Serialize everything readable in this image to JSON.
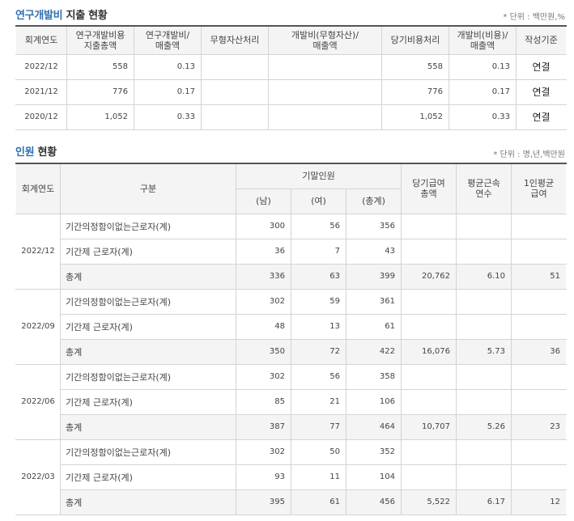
{
  "rd": {
    "title_prefix": "연구개발비",
    "title_rest": " 지출 현황",
    "unit": "* 단위 : 백만원,%",
    "headers": [
      "회계연도",
      "연구개발비용 지출총액",
      "연구개발비/ 매출액",
      "무형자산처리",
      "개발비(무형자산)/ 매출액",
      "당기비용처리",
      "개발비(비용)/ 매출액",
      "작성기준"
    ],
    "rows": [
      [
        "2022/12",
        "558",
        "0.13",
        "",
        "",
        "558",
        "0.13",
        "연결"
      ],
      [
        "2021/12",
        "776",
        "0.17",
        "",
        "",
        "776",
        "0.17",
        "연결"
      ],
      [
        "2020/12",
        "1,052",
        "0.33",
        "",
        "",
        "1,052",
        "0.33",
        "연결"
      ]
    ]
  },
  "hr": {
    "title_prefix": "인원",
    "title_rest": " 현황",
    "unit": "* 단위 : 명,년,백만원",
    "headers": {
      "year": "회계연도",
      "category": "구분",
      "end_staff": "기말인원",
      "male": "(남)",
      "female": "(여)",
      "total": "(총계)",
      "pay": "당기급여 총액",
      "tenure": "평균근속 연수",
      "avg_pay": "1인평균 급여"
    },
    "groups": [
      {
        "year": "2022/12",
        "rows": [
          [
            "기간의정함이없는근로자(계)",
            "300",
            "56",
            "356",
            "",
            "",
            ""
          ],
          [
            "기간제 근로자(계)",
            "36",
            "7",
            "43",
            "",
            "",
            ""
          ],
          [
            "총계",
            "336",
            "63",
            "399",
            "20,762",
            "6.10",
            "51"
          ]
        ]
      },
      {
        "year": "2022/09",
        "rows": [
          [
            "기간의정함이없는근로자(계)",
            "302",
            "59",
            "361",
            "",
            "",
            ""
          ],
          [
            "기간제 근로자(계)",
            "48",
            "13",
            "61",
            "",
            "",
            ""
          ],
          [
            "총계",
            "350",
            "72",
            "422",
            "16,076",
            "5.73",
            "36"
          ]
        ]
      },
      {
        "year": "2022/06",
        "rows": [
          [
            "기간의정함이없는근로자(계)",
            "302",
            "56",
            "358",
            "",
            "",
            ""
          ],
          [
            "기간제 근로자(계)",
            "85",
            "21",
            "106",
            "",
            "",
            ""
          ],
          [
            "총계",
            "387",
            "77",
            "464",
            "10,707",
            "5.26",
            "23"
          ]
        ]
      },
      {
        "year": "2022/03",
        "rows": [
          [
            "기간의정함이없는근로자(계)",
            "302",
            "50",
            "352",
            "",
            "",
            ""
          ],
          [
            "기간제 근로자(계)",
            "93",
            "11",
            "104",
            "",
            "",
            ""
          ],
          [
            "총계",
            "395",
            "61",
            "456",
            "5,522",
            "6.17",
            "12"
          ]
        ]
      }
    ]
  }
}
